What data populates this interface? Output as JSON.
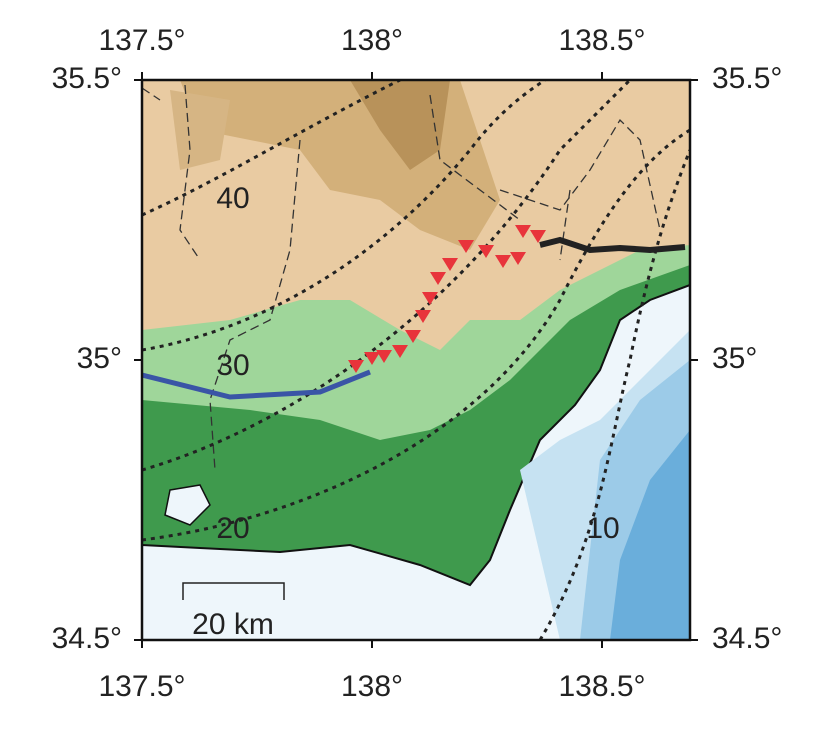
{
  "axes": {
    "x_ticks": [
      {
        "value": 137.5,
        "label": "137.5°"
      },
      {
        "value": 138,
        "label": "138°"
      },
      {
        "value": 138.5,
        "label": "138.5°"
      }
    ],
    "y_ticks": [
      {
        "value": 35.5,
        "label": "35.5°"
      },
      {
        "value": 35,
        "label": "35°"
      },
      {
        "value": 34.5,
        "label": "34.5°"
      }
    ]
  },
  "contour_labels": [
    "40",
    "30",
    "20",
    "10"
  ],
  "scale_bar": "20 km"
}
